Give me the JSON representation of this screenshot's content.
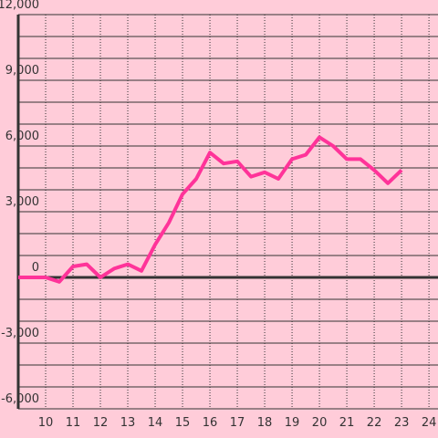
{
  "chart_data": {
    "type": "line",
    "x": [
      9,
      9.5,
      10,
      10.5,
      11,
      11.5,
      12,
      12.5,
      13,
      13.5,
      14,
      14.5,
      15,
      15.5,
      16,
      16.5,
      17,
      17.5,
      18,
      18.5,
      19,
      19.5,
      20,
      20.5,
      21,
      21.5,
      22,
      22.5,
      23
    ],
    "values": [
      0,
      0,
      0,
      -200,
      500,
      600,
      0,
      400,
      600,
      300,
      1500,
      2500,
      3800,
      4500,
      5700,
      5200,
      5300,
      4600,
      4800,
      4500,
      5400,
      5600,
      6400,
      6000,
      5400,
      5400,
      4900,
      4300,
      4900
    ],
    "color": "#ff3399",
    "xlim": [
      9,
      24.33
    ],
    "xticks": [
      10,
      11,
      12,
      13,
      14,
      15,
      16,
      17,
      18,
      19,
      20,
      21,
      22,
      23,
      24
    ],
    "ylim": [
      -6000,
      12000
    ],
    "yticks": [
      {
        "value": 12000,
        "label": "12,000"
      },
      {
        "value": 9000,
        "label": "9,000"
      },
      {
        "value": 6000,
        "label": "6,000"
      },
      {
        "value": 3000,
        "label": "3,000"
      },
      0,
      {
        "value": -3000,
        "label": "-3,000"
      },
      {
        "value": -6000,
        "label": "-6,000"
      }
    ],
    "minor_yticks": [
      11000,
      10000,
      8000,
      7000,
      5000,
      4000,
      2000,
      1000,
      -1000,
      -2000,
      -4000,
      -5000
    ],
    "grid": true
  }
}
